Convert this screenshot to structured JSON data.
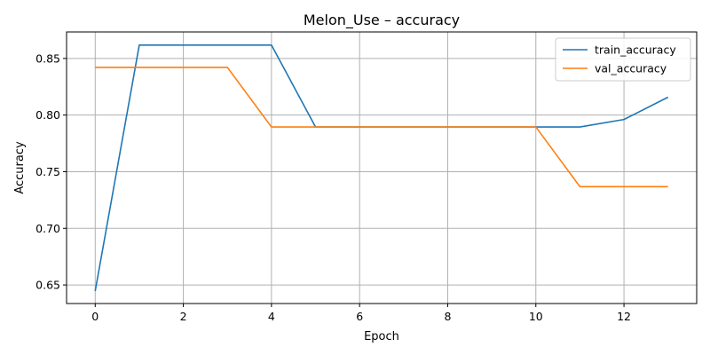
{
  "chart_data": {
    "type": "line",
    "title": "Melon_Use – accuracy",
    "xlabel": "Epoch",
    "ylabel": "Accuracy",
    "xlim": [
      -0.65,
      13.65
    ],
    "ylim": [
      0.6336,
      0.8734
    ],
    "xticks": [
      0,
      2,
      4,
      6,
      8,
      10,
      12
    ],
    "yticks": [
      0.65,
      0.7,
      0.75,
      0.8,
      0.85
    ],
    "ytick_labels": [
      "0.65",
      "0.70",
      "0.75",
      "0.80",
      "0.85"
    ],
    "grid": true,
    "legend_position": "top-right",
    "x": [
      0,
      1,
      2,
      3,
      4,
      5,
      6,
      7,
      8,
      9,
      10,
      11,
      12,
      13
    ],
    "series": [
      {
        "name": "train_accuracy",
        "color": "#1f77b4",
        "values": [
          0.6447,
          0.8618,
          0.8618,
          0.8618,
          0.8618,
          0.7895,
          0.7895,
          0.7895,
          0.7895,
          0.7895,
          0.7895,
          0.7895,
          0.7961,
          0.8158
        ]
      },
      {
        "name": "val_accuracy",
        "color": "#ff7f0e",
        "values": [
          0.8421,
          0.8421,
          0.8421,
          0.8421,
          0.7895,
          0.7895,
          0.7895,
          0.7895,
          0.7895,
          0.7895,
          0.7895,
          0.7368,
          0.7368,
          0.7368
        ]
      }
    ]
  }
}
